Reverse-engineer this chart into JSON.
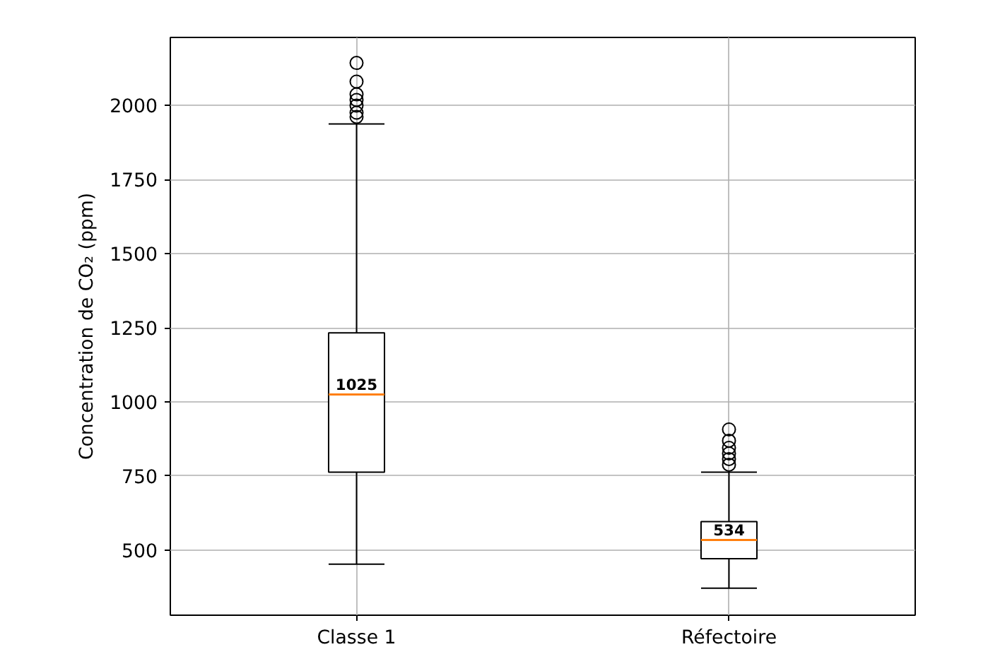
{
  "chart_data": {
    "type": "box",
    "ylabel": "Concentration de CO₂ (ppm)",
    "categories": [
      "Classe 1",
      "Réfectoire"
    ],
    "boxes": [
      {
        "low": 452,
        "q1": 763,
        "median": 1025,
        "q3": 1233,
        "high": 1938,
        "outliers": [
          2144,
          2081,
          2038,
          2019,
          2000,
          1976,
          1962
        ]
      },
      {
        "low": 371,
        "q1": 471,
        "median": 534,
        "q3": 596,
        "high": 763,
        "outliers": [
          907,
          869,
          845,
          826,
          807,
          788
        ]
      }
    ],
    "ylim": [
      280,
      2230
    ],
    "yticks": [
      500,
      750,
      1000,
      1250,
      1500,
      1750,
      2000
    ],
    "grid": true,
    "color": "#000000",
    "annotations": [
      {
        "text": "1025",
        "x": "Classe 1",
        "y": 1025
      },
      {
        "text": "534",
        "x": "Réfectoire",
        "y": 534
      }
    ]
  }
}
